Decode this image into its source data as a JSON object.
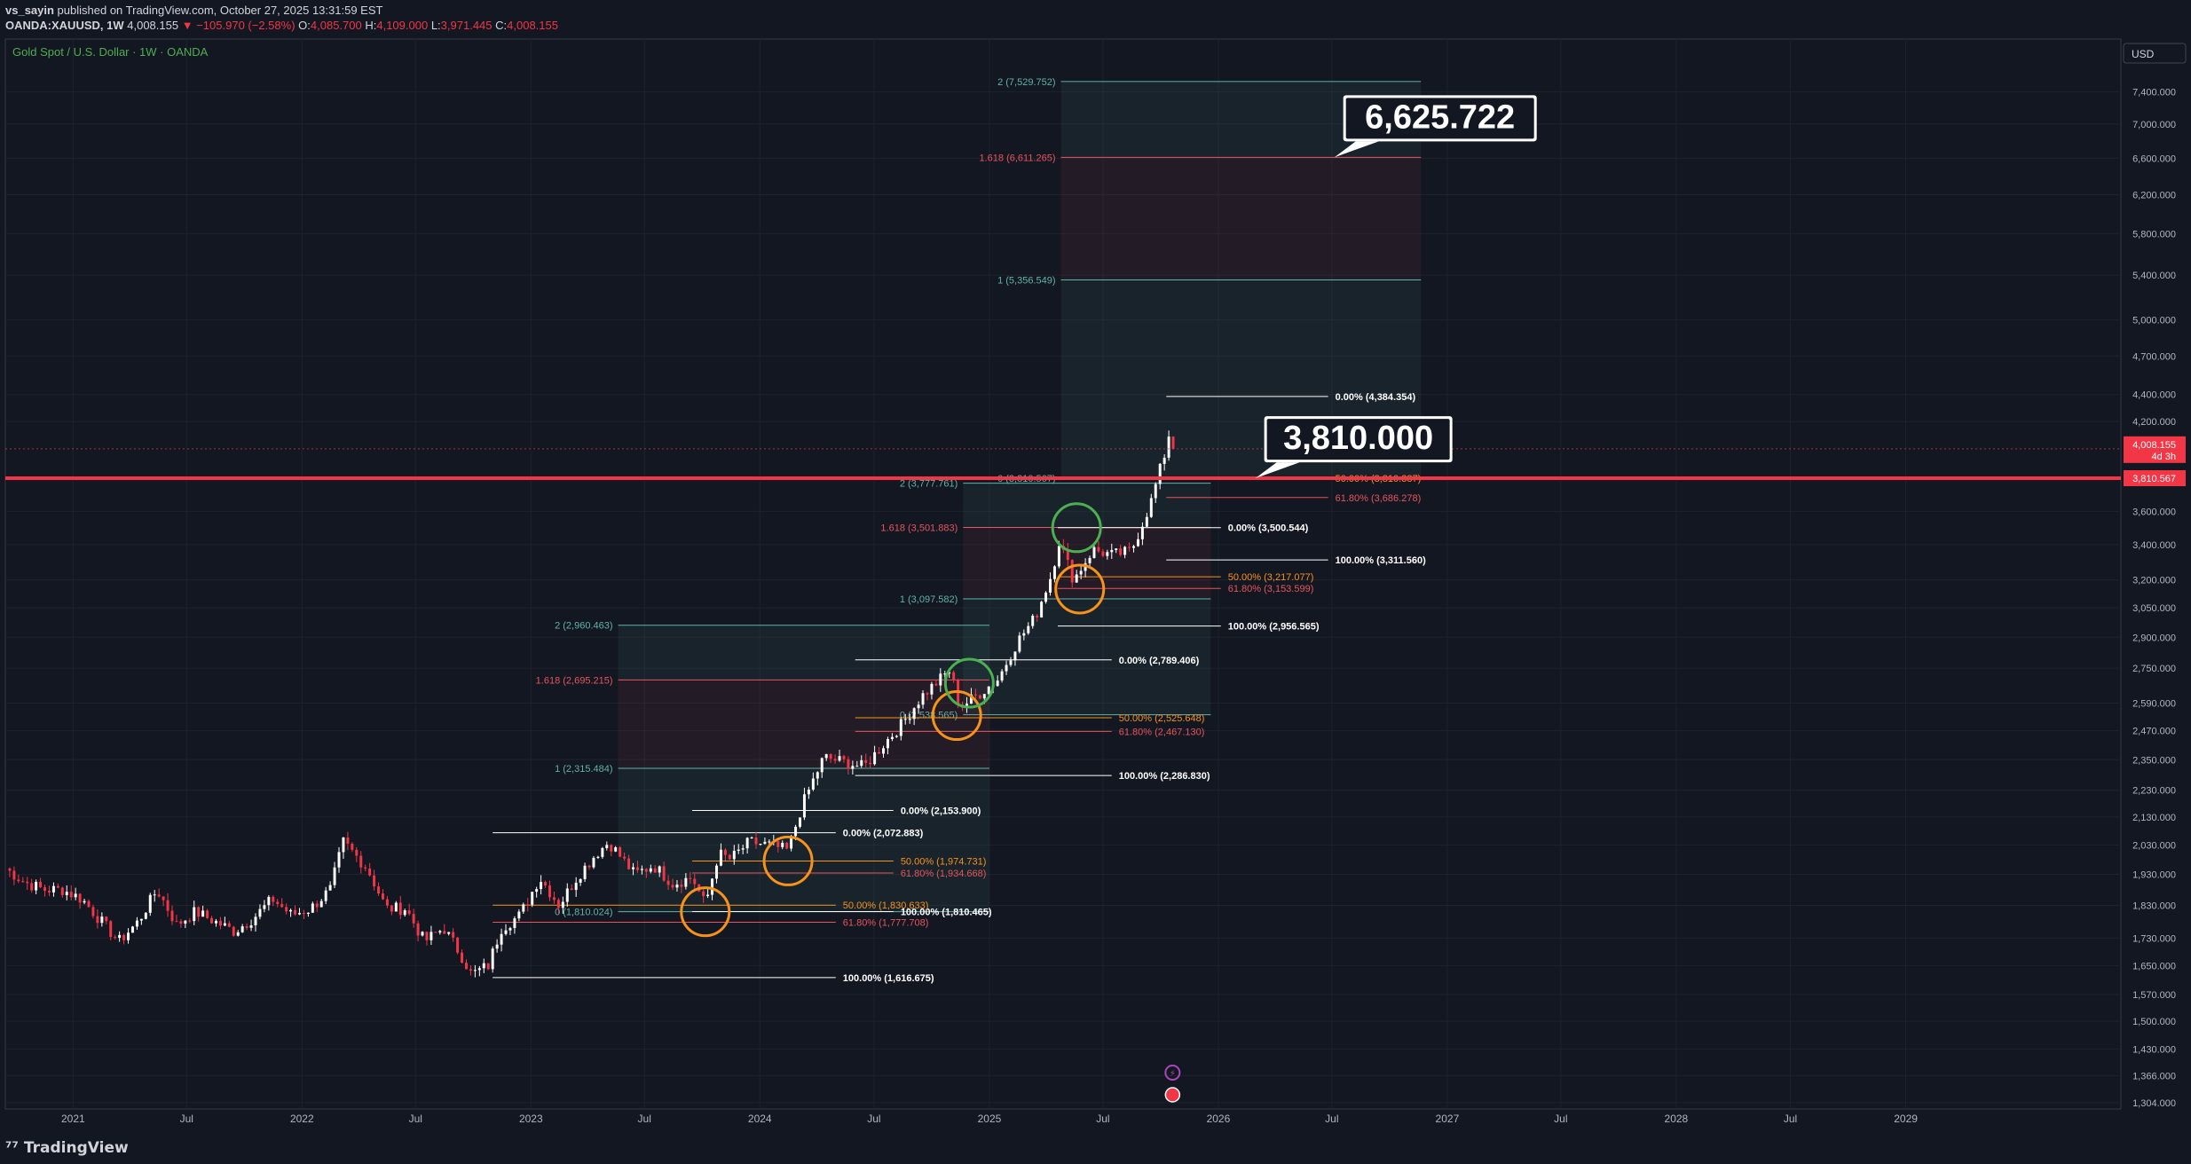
{
  "header": {
    "line1_user": "vs_sayin",
    "line1_rest": " published on TradingView.com, October 27, 2025 13:31:59 EST",
    "symbol": "OANDA:XAUUSD, 1W",
    "last": "4,008.155",
    "change": "−105.970 (−2.58%)",
    "o_label": "O:",
    "o": "4,085.700",
    "h_label": "H:",
    "h": "4,109.000",
    "l_label": "L:",
    "l": "3,971.445",
    "c_label": "C:",
    "c": "4,008.155"
  },
  "chart_title": "Gold Spot / U.S. Dollar · 1W · OANDA",
  "currency": "USD",
  "price_badge": {
    "price": "4,008.155",
    "timer": "4d 3h",
    "color": "#f23645"
  },
  "line_badge": {
    "price": "3,810.567",
    "color": "#f23645"
  },
  "callouts": [
    {
      "text": "6,625.722",
      "price": 6611.265,
      "date": "2026-07-05"
    },
    {
      "text": "3,810.000",
      "price": 3810.0,
      "date": "2026-03-01"
    }
  ],
  "footer": {
    "brand": "TradingView"
  },
  "colors": {
    "up": "#ffffff",
    "down": "#f23645",
    "background": "#131722",
    "teal": "#5fb4a9",
    "red_level": "#e8545a",
    "orange": "#f7931a",
    "green_circle": "#4caf50"
  },
  "chart_data": {
    "type": "candlestick",
    "title": "Gold Spot / U.S. Dollar · 1W · OANDA",
    "xlabel": "",
    "ylabel": "",
    "scale": "log",
    "ylim": [
      1290,
      8100
    ],
    "xlim": [
      "2020-09-15",
      "2029-12-10"
    ],
    "grid": true,
    "x_tick_labels": [
      {
        "label": "2021",
        "date": "2021-01-01"
      },
      {
        "label": "Jul",
        "date": "2021-07-01"
      },
      {
        "label": "2022",
        "date": "2022-01-01"
      },
      {
        "label": "Jul",
        "date": "2022-07-01"
      },
      {
        "label": "2023",
        "date": "2023-01-01"
      },
      {
        "label": "Jul",
        "date": "2023-07-01"
      },
      {
        "label": "2024",
        "date": "2024-01-01"
      },
      {
        "label": "Jul",
        "date": "2024-07-01"
      },
      {
        "label": "2025",
        "date": "2025-01-01"
      },
      {
        "label": "Jul",
        "date": "2025-07-01"
      },
      {
        "label": "2026",
        "date": "2026-01-01"
      },
      {
        "label": "Jul",
        "date": "2026-07-01"
      },
      {
        "label": "2027",
        "date": "2027-01-01"
      },
      {
        "label": "Jul",
        "date": "2027-07-01"
      },
      {
        "label": "2028",
        "date": "2028-01-01"
      },
      {
        "label": "Jul",
        "date": "2028-07-01"
      },
      {
        "label": "2029",
        "date": "2029-01-01"
      }
    ],
    "y_tick_labels": [
      "7,400.000",
      "7,000.000",
      "6,600.000",
      "6,200.000",
      "5,800.000",
      "5,400.000",
      "5,000.000",
      "4,700.000",
      "4,400.000",
      "4,200.000",
      "3,800.000",
      "3,600.000",
      "3,400.000",
      "3,200.000",
      "3,050.000",
      "2,900.000",
      "2,750.000",
      "2,590.000",
      "2,470.000",
      "2,350.000",
      "2,230.000",
      "2,130.000",
      "2,030.000",
      "1,930.000",
      "1,830.000",
      "1,730.000",
      "1,650.000",
      "1,570.000",
      "1,500.000",
      "1,430.000",
      "1,366.000",
      "1,304.000"
    ],
    "price_series_weekly_close": [
      {
        "date": "2020-09-15",
        "close": 1950
      },
      {
        "date": "2020-10-15",
        "close": 1905
      },
      {
        "date": "2020-11-15",
        "close": 1880
      },
      {
        "date": "2020-12-15",
        "close": 1880
      },
      {
        "date": "2021-01-15",
        "close": 1850
      },
      {
        "date": "2021-02-15",
        "close": 1780
      },
      {
        "date": "2021-03-15",
        "close": 1720
      },
      {
        "date": "2021-04-15",
        "close": 1780
      },
      {
        "date": "2021-05-15",
        "close": 1880
      },
      {
        "date": "2021-06-15",
        "close": 1770
      },
      {
        "date": "2021-07-15",
        "close": 1810
      },
      {
        "date": "2021-08-15",
        "close": 1780
      },
      {
        "date": "2021-09-15",
        "close": 1750
      },
      {
        "date": "2021-10-15",
        "close": 1790
      },
      {
        "date": "2021-11-15",
        "close": 1850
      },
      {
        "date": "2021-12-15",
        "close": 1800
      },
      {
        "date": "2022-01-15",
        "close": 1820
      },
      {
        "date": "2022-02-15",
        "close": 1880
      },
      {
        "date": "2022-03-08",
        "close": 2040
      },
      {
        "date": "2022-04-15",
        "close": 1950
      },
      {
        "date": "2022-05-15",
        "close": 1820
      },
      {
        "date": "2022-06-15",
        "close": 1820
      },
      {
        "date": "2022-07-15",
        "close": 1720
      },
      {
        "date": "2022-08-15",
        "close": 1760
      },
      {
        "date": "2022-09-15",
        "close": 1670
      },
      {
        "date": "2022-09-28",
        "close": 1625
      },
      {
        "date": "2022-10-25",
        "close": 1650
      },
      {
        "date": "2022-11-15",
        "close": 1760
      },
      {
        "date": "2022-12-15",
        "close": 1800
      },
      {
        "date": "2023-01-15",
        "close": 1920
      },
      {
        "date": "2023-02-15",
        "close": 1830
      },
      {
        "date": "2023-03-15",
        "close": 1920
      },
      {
        "date": "2023-04-15",
        "close": 2000
      },
      {
        "date": "2023-05-05",
        "close": 2040
      },
      {
        "date": "2023-06-15",
        "close": 1930
      },
      {
        "date": "2023-07-15",
        "close": 1960
      },
      {
        "date": "2023-08-15",
        "close": 1900
      },
      {
        "date": "2023-09-15",
        "close": 1920
      },
      {
        "date": "2023-10-06",
        "close": 1830
      },
      {
        "date": "2023-10-27",
        "close": 2000
      },
      {
        "date": "2023-11-15",
        "close": 1980
      },
      {
        "date": "2023-12-15",
        "close": 2040
      },
      {
        "date": "2024-01-15",
        "close": 2030
      },
      {
        "date": "2024-02-15",
        "close": 2010
      },
      {
        "date": "2024-03-08",
        "close": 2170
      },
      {
        "date": "2024-04-12",
        "close": 2360
      },
      {
        "date": "2024-05-15",
        "close": 2340
      },
      {
        "date": "2024-06-15",
        "close": 2320
      },
      {
        "date": "2024-07-15",
        "close": 2410
      },
      {
        "date": "2024-08-15",
        "close": 2500
      },
      {
        "date": "2024-09-15",
        "close": 2620
      },
      {
        "date": "2024-10-30",
        "close": 2740
      },
      {
        "date": "2024-11-15",
        "close": 2570
      },
      {
        "date": "2024-12-15",
        "close": 2630
      },
      {
        "date": "2025-01-15",
        "close": 2700
      },
      {
        "date": "2025-02-15",
        "close": 2880
      },
      {
        "date": "2025-03-15",
        "close": 3000
      },
      {
        "date": "2025-04-10",
        "close": 3230
      },
      {
        "date": "2025-04-22",
        "close": 3420
      },
      {
        "date": "2025-05-15",
        "close": 3200
      },
      {
        "date": "2025-06-15",
        "close": 3370
      },
      {
        "date": "2025-07-15",
        "close": 3340
      },
      {
        "date": "2025-08-15",
        "close": 3360
      },
      {
        "date": "2025-09-15",
        "close": 3650
      },
      {
        "date": "2025-10-10",
        "close": 4010
      },
      {
        "date": "2025-10-20",
        "close": 4250
      },
      {
        "date": "2025-10-27",
        "close": 4008.155
      }
    ],
    "fib_extensions": [
      {
        "x1": "2025-04-25",
        "x2": "2026-11-20",
        "levels": [
          {
            "label": "2 (7,529.752)",
            "price": 7529.752,
            "color": "#5fb4a9"
          },
          {
            "label": "1.618 (6,611.265)",
            "price": 6611.265,
            "color": "#e8545a"
          },
          {
            "label": "1 (5,356.549)",
            "price": 5356.549,
            "color": "#5fb4a9"
          },
          {
            "label": "0 (3,810.567)",
            "price": 3810.567,
            "color": "#5fb4a9"
          }
        ]
      },
      {
        "x1": "2024-11-20",
        "x2": "2025-12-20",
        "levels": [
          {
            "label": "2 (3,777.761)",
            "price": 3777.761,
            "color": "#5fb4a9"
          },
          {
            "label": "1.618 (3,501.883)",
            "price": 3501.883,
            "color": "#e8545a"
          },
          {
            "label": "1 (3,097.582)",
            "price": 3097.582,
            "color": "#5fb4a9"
          },
          {
            "label": "0 (2,538.565)",
            "price": 2538.565,
            "color": "#5fb4a9"
          }
        ]
      },
      {
        "x1": "2023-05-20",
        "x2": "2025-01-01",
        "levels": [
          {
            "label": "2 (2,960.463)",
            "price": 2960.463,
            "color": "#5fb4a9"
          },
          {
            "label": "1.618 (2,695.215)",
            "price": 2695.215,
            "color": "#e8545a"
          },
          {
            "label": "1 (2,315.484)",
            "price": 2315.484,
            "color": "#5fb4a9"
          },
          {
            "label": "0 (1,810.024)",
            "price": 1810.024,
            "color": "#5fb4a9"
          }
        ]
      }
    ],
    "fib_retracements": [
      {
        "x1": "2025-10-10",
        "x2": "2026-06-25",
        "levels": [
          {
            "label": "0.00% (4,384.354)",
            "price": 4384.354,
            "color": "#ffffff"
          },
          {
            "label": "50.00% (3,810.387)",
            "price": 3810.387,
            "color": "#f7931a"
          },
          {
            "label": "61.80% (3,686.278)",
            "price": 3686.278,
            "color": "#e8545a"
          },
          {
            "label": "100.00% (3,311.560)",
            "price": 3311.56,
            "color": "#ffffff"
          }
        ]
      },
      {
        "x1": "2025-04-20",
        "x2": "2026-01-05",
        "levels": [
          {
            "label": "0.00% (3,500.544)",
            "price": 3500.544,
            "color": "#ffffff"
          },
          {
            "label": "50.00% (3,217.077)",
            "price": 3217.077,
            "color": "#f7931a"
          },
          {
            "label": "61.80% (3,153.599)",
            "price": 3153.599,
            "color": "#e8545a"
          },
          {
            "label": "100.00% (2,956.565)",
            "price": 2956.565,
            "color": "#ffffff"
          }
        ]
      },
      {
        "x1": "2024-06-01",
        "x2": "2025-07-15",
        "levels": [
          {
            "label": "0.00% (2,789.406)",
            "price": 2789.406,
            "color": "#ffffff"
          },
          {
            "label": "50.00% (2,525.648)",
            "price": 2525.648,
            "color": "#f7931a"
          },
          {
            "label": "61.80% (2,467.130)",
            "price": 2467.13,
            "color": "#e8545a"
          },
          {
            "label": "100.00% (2,286.830)",
            "price": 2286.83,
            "color": "#ffffff"
          }
        ]
      },
      {
        "x1": "2023-09-15",
        "x2": "2024-08-01",
        "levels": [
          {
            "label": "0.00% (2,153.900)",
            "price": 2153.9,
            "color": "#ffffff"
          },
          {
            "label": "50.00% (1,974.731)",
            "price": 1974.731,
            "color": "#f7931a"
          },
          {
            "label": "61.80% (1,934.668)",
            "price": 1934.668,
            "color": "#e8545a"
          },
          {
            "label": "100.00% (1,810.465)",
            "price": 1810.465,
            "color": "#ffffff"
          }
        ]
      },
      {
        "x1": "2022-11-01",
        "x2": "2024-05-01",
        "levels": [
          {
            "label": "0.00% (2,072.883)",
            "price": 2072.883,
            "color": "#ffffff"
          },
          {
            "label": "50.00% (1,830.633)",
            "price": 1830.633,
            "color": "#f7931a"
          },
          {
            "label": "61.80% (1,777.708)",
            "price": 1777.708,
            "color": "#e8545a"
          },
          {
            "label": "100.00% (1,616.675)",
            "price": 1616.675,
            "color": "#ffffff"
          }
        ]
      }
    ],
    "horizontal_line": {
      "price": 3810.567,
      "color": "#f23645"
    },
    "last_price_line": {
      "price": 4008.155,
      "color": "#f23645"
    },
    "circles": [
      {
        "date": "2023-10-06",
        "price": 1810,
        "color": "#f7931a"
      },
      {
        "date": "2024-02-15",
        "price": 1975,
        "color": "#f7931a"
      },
      {
        "date": "2024-11-10",
        "price": 2535,
        "color": "#f7931a"
      },
      {
        "date": "2024-11-30",
        "price": 2680,
        "color": "#4caf50"
      },
      {
        "date": "2025-05-25",
        "price": 3150,
        "color": "#f7931a"
      },
      {
        "date": "2025-05-20",
        "price": 3500,
        "color": "#4caf50"
      }
    ]
  }
}
